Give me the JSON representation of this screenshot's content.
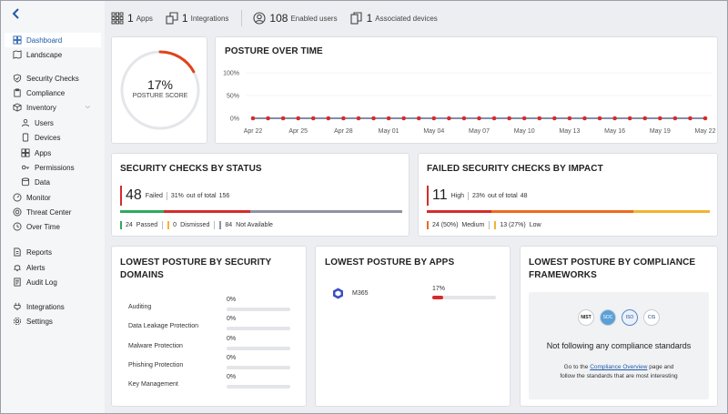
{
  "sidebar": {
    "back_icon": "chevron-left-icon",
    "items": [
      {
        "label": "Dashboard",
        "icon": "dashboard-icon",
        "active": true
      },
      {
        "label": "Landscape",
        "icon": "map-icon"
      },
      {
        "label": "Security Checks",
        "icon": "shield-check-icon"
      },
      {
        "label": "Compliance",
        "icon": "clipboard-icon"
      },
      {
        "label": "Inventory",
        "icon": "box-icon",
        "expanded": true
      },
      {
        "label": "Users",
        "icon": "user-icon",
        "sub": true
      },
      {
        "label": "Devices",
        "icon": "device-icon",
        "sub": true
      },
      {
        "label": "Apps",
        "icon": "apps-icon",
        "sub": true
      },
      {
        "label": "Permissions",
        "icon": "key-icon",
        "sub": true
      },
      {
        "label": "Data",
        "icon": "data-icon",
        "sub": true
      },
      {
        "label": "Monitor",
        "icon": "monitor-icon"
      },
      {
        "label": "Threat Center",
        "icon": "target-icon"
      },
      {
        "label": "Over Time",
        "icon": "clock-icon"
      },
      {
        "label": "Reports",
        "icon": "report-icon"
      },
      {
        "label": "Alerts",
        "icon": "bell-icon"
      },
      {
        "label": "Audit Log",
        "icon": "log-icon"
      },
      {
        "label": "Integrations",
        "icon": "plug-icon"
      },
      {
        "label": "Settings",
        "icon": "gear-icon"
      }
    ]
  },
  "topbar": {
    "apps": {
      "count": "1",
      "label": "Apps"
    },
    "integrations": {
      "count": "1",
      "label": "Integrations"
    },
    "users": {
      "count": "108",
      "label": "Enabled users"
    },
    "devices": {
      "count": "1",
      "label": "Associated devices"
    }
  },
  "posture_score": {
    "value": "17%",
    "label": "POSTURE SCORE",
    "fraction": 0.17,
    "color": "#e0431a"
  },
  "posture_over_time": {
    "title": "POSTURE OVER TIME",
    "chart_data": {
      "type": "line",
      "x": [
        "Apr 22",
        "Apr 23",
        "Apr 24",
        "Apr 25",
        "Apr 26",
        "Apr 27",
        "Apr 28",
        "Apr 29",
        "Apr 30",
        "May 01",
        "May 02",
        "May 03",
        "May 04",
        "May 05",
        "May 06",
        "May 07",
        "May 08",
        "May 09",
        "May 10",
        "May 11",
        "May 12",
        "May 13",
        "May 14",
        "May 15",
        "May 16",
        "May 17",
        "May 18",
        "May 19",
        "May 20",
        "May 21",
        "May 22"
      ],
      "tick_labels": [
        "Apr 22",
        "Apr 25",
        "Apr 28",
        "May 01",
        "May 04",
        "May 07",
        "May 10",
        "May 13",
        "May 16",
        "May 19",
        "May 22"
      ],
      "y_ticks": [
        "100%",
        "50%",
        "0%"
      ],
      "values": [
        0,
        0,
        0,
        0,
        0,
        0,
        0,
        0,
        0,
        0,
        0,
        0,
        0,
        0,
        0,
        0,
        0,
        0,
        0,
        0,
        0,
        0,
        0,
        0,
        0,
        0,
        0,
        0,
        0,
        0,
        0
      ],
      "ylim": [
        0,
        100
      ],
      "line_color": "#3a4a7a",
      "point_color": "#d62b2b"
    }
  },
  "checks_by_status": {
    "title": "SECURITY CHECKS BY STATUS",
    "failed_count": "48",
    "failed_label": "Failed",
    "pct_text": "31%",
    "of_total_text": "out of total",
    "total": "156",
    "segments": [
      {
        "name": "Passed",
        "count": "24",
        "value": 24,
        "color": "#2eaa5c"
      },
      {
        "name": "Failed",
        "count": "48",
        "value": 48,
        "color": "#d62b2b"
      },
      {
        "name": "Not Available",
        "count": "84",
        "value": 84,
        "color": "#8f93a2"
      }
    ],
    "legend": [
      {
        "count": "24",
        "label": "Passed",
        "color": "#2eaa5c"
      },
      {
        "count": "0",
        "label": "Dismissed",
        "color": "#f2b431"
      },
      {
        "count": "84",
        "label": "Not Available",
        "color": "#8f93a2"
      }
    ]
  },
  "failed_by_impact": {
    "title": "FAILED SECURITY CHECKS BY IMPACT",
    "high_count": "11",
    "high_label": "High",
    "pct_text": "23%",
    "of_total_text": "out of total",
    "total": "48",
    "segments": [
      {
        "name": "High",
        "value": 11,
        "color": "#d62b2b"
      },
      {
        "name": "Medium",
        "value": 24,
        "color": "#ee6a1f"
      },
      {
        "name": "Low",
        "value": 13,
        "color": "#f2b431"
      }
    ],
    "legend": [
      {
        "text": "24 (50%)",
        "label": "Medium",
        "color": "#ee6a1f"
      },
      {
        "text": "13 (27%)",
        "label": "Low",
        "color": "#f2b431"
      }
    ]
  },
  "security_domains": {
    "title_line1": "LOWEST POSTURE BY SECURITY",
    "title_line2": "DOMAINS",
    "rows": [
      {
        "name": "Auditing",
        "pct": "0%",
        "value": 0
      },
      {
        "name": "Data Leakage Protection",
        "pct": "0%",
        "value": 0
      },
      {
        "name": "Malware Protection",
        "pct": "0%",
        "value": 0
      },
      {
        "name": "Phishing Protection",
        "pct": "0%",
        "value": 0
      },
      {
        "name": "Key Management",
        "pct": "0%",
        "value": 0
      }
    ]
  },
  "apps": {
    "title": "LOWEST POSTURE BY APPS",
    "rows": [
      {
        "name": "M365",
        "pct": "17%",
        "value": 0.17,
        "icon": "m365-icon"
      }
    ]
  },
  "compliance": {
    "title_line1": "LOWEST POSTURE BY COMPLIANCE",
    "title_line2": "FRAMEWORKS",
    "logos": [
      {
        "label": "NIST"
      },
      {
        "label": "SOC"
      },
      {
        "label": "ISO"
      },
      {
        "label": "CIS"
      }
    ],
    "headline": "Not following any compliance standards",
    "help_prefix": "Go to the",
    "help_link": "Compliance Overview",
    "help_suffix": "page and",
    "help_line2": "follow the standards that are most interesting"
  }
}
